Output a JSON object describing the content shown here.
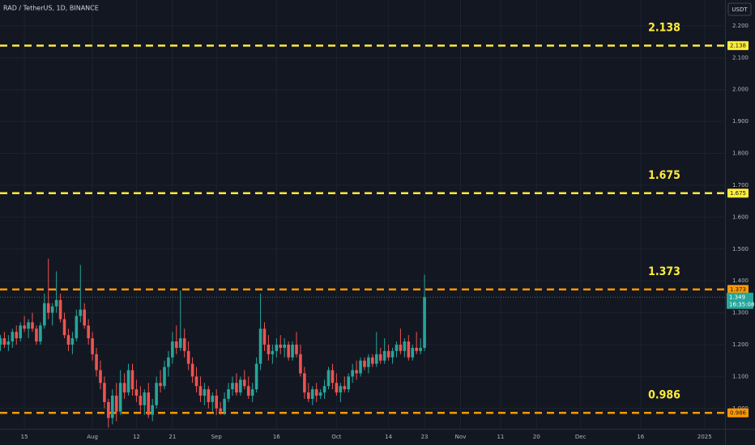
{
  "chart_data": {
    "type": "candlestick",
    "title": "RAD / TetherUS, 1D, BINANCE",
    "currency": "USDT",
    "up_color": "#26a69a",
    "down_color": "#ef5350",
    "grid": true,
    "ylim": [
      0.936,
      2.281
    ],
    "yticks": [
      {
        "value": 1.0,
        "label": "1.000"
      },
      {
        "value": 1.1,
        "label": "1.100"
      },
      {
        "value": 1.2,
        "label": "1.200"
      },
      {
        "value": 1.3,
        "label": "1.300"
      },
      {
        "value": 1.4,
        "label": "1.400"
      },
      {
        "value": 1.5,
        "label": "1.500"
      },
      {
        "value": 1.6,
        "label": "1.600"
      },
      {
        "value": 1.7,
        "label": "1.700"
      },
      {
        "value": 1.8,
        "label": "1.800"
      },
      {
        "value": 1.9,
        "label": "1.900"
      },
      {
        "value": 2.0,
        "label": "2.000"
      },
      {
        "value": 2.1,
        "label": "2.100"
      },
      {
        "value": 2.2,
        "label": "2.200"
      }
    ],
    "xlim": [
      7.9,
      189.1
    ],
    "xticks": [
      {
        "value": 14,
        "label": "15"
      },
      {
        "value": 31,
        "label": "Aug"
      },
      {
        "value": 42,
        "label": "12"
      },
      {
        "value": 51,
        "label": "21"
      },
      {
        "value": 62,
        "label": "Sep"
      },
      {
        "value": 77,
        "label": "16"
      },
      {
        "value": 92,
        "label": "Oct"
      },
      {
        "value": 105,
        "label": "14"
      },
      {
        "value": 114,
        "label": "23"
      },
      {
        "value": 123,
        "label": "Nov"
      },
      {
        "value": 133,
        "label": "11"
      },
      {
        "value": 142,
        "label": "20"
      },
      {
        "value": 153,
        "label": "Dec"
      },
      {
        "value": 168,
        "label": "16"
      },
      {
        "value": 184,
        "label": "2025"
      }
    ],
    "levels": [
      {
        "value": 2.138,
        "color": "#ffeb3b"
      },
      {
        "value": 1.675,
        "color": "#ffeb3b"
      },
      {
        "value": 1.373,
        "color": "#ff9800"
      },
      {
        "value": 0.986,
        "color": "#ff9800"
      }
    ],
    "level_label_color": "#ffeb3b",
    "last_price": 1.349,
    "countdown": "16:35:08",
    "x": [
      8,
      9,
      10,
      11,
      12,
      13,
      14,
      15,
      16,
      17,
      18,
      19,
      20,
      21,
      22,
      23,
      24,
      25,
      26,
      27,
      28,
      29,
      30,
      31,
      32,
      33,
      34,
      35,
      36,
      37,
      38,
      39,
      40,
      41,
      42,
      43,
      44,
      45,
      46,
      47,
      48,
      49,
      50,
      51,
      52,
      53,
      54,
      55,
      56,
      57,
      58,
      59,
      60,
      61,
      62,
      63,
      64,
      65,
      66,
      67,
      68,
      69,
      70,
      71,
      72,
      73,
      74,
      75,
      76,
      77,
      78,
      79,
      80,
      81,
      82,
      83,
      84,
      85,
      86,
      87,
      88,
      89,
      90,
      91,
      92,
      93,
      94,
      95,
      96,
      97,
      98,
      99,
      100,
      101,
      102,
      103,
      104,
      105,
      106,
      107,
      108,
      109,
      110,
      111,
      112,
      113,
      114
    ],
    "ohlc": [
      [
        1.2,
        1.23,
        1.18,
        1.22
      ],
      [
        1.22,
        1.24,
        1.19,
        1.2
      ],
      [
        1.2,
        1.23,
        1.18,
        1.21
      ],
      [
        1.21,
        1.25,
        1.19,
        1.24
      ],
      [
        1.24,
        1.26,
        1.2,
        1.22
      ],
      [
        1.22,
        1.27,
        1.21,
        1.26
      ],
      [
        1.26,
        1.29,
        1.24,
        1.25
      ],
      [
        1.25,
        1.28,
        1.22,
        1.27
      ],
      [
        1.27,
        1.3,
        1.24,
        1.25
      ],
      [
        1.25,
        1.26,
        1.2,
        1.21
      ],
      [
        1.21,
        1.27,
        1.2,
        1.26
      ],
      [
        1.26,
        1.36,
        1.25,
        1.33
      ],
      [
        1.33,
        1.47,
        1.28,
        1.3
      ],
      [
        1.3,
        1.33,
        1.26,
        1.32
      ],
      [
        1.32,
        1.43,
        1.3,
        1.34
      ],
      [
        1.34,
        1.36,
        1.27,
        1.28
      ],
      [
        1.28,
        1.3,
        1.22,
        1.23
      ],
      [
        1.23,
        1.25,
        1.18,
        1.2
      ],
      [
        1.2,
        1.24,
        1.17,
        1.22
      ],
      [
        1.22,
        1.31,
        1.21,
        1.29
      ],
      [
        1.29,
        1.45,
        1.27,
        1.31
      ],
      [
        1.31,
        1.33,
        1.25,
        1.26
      ],
      [
        1.26,
        1.28,
        1.2,
        1.22
      ],
      [
        1.22,
        1.24,
        1.15,
        1.17
      ],
      [
        1.17,
        1.19,
        1.1,
        1.12
      ],
      [
        1.12,
        1.15,
        1.06,
        1.08
      ],
      [
        1.08,
        1.1,
        1.0,
        1.02
      ],
      [
        1.02,
        1.03,
        0.94,
        0.97
      ],
      [
        0.97,
        1.06,
        0.95,
        1.04
      ],
      [
        1.04,
        1.08,
        0.96,
        0.99
      ],
      [
        0.99,
        1.12,
        0.98,
        1.08
      ],
      [
        1.08,
        1.11,
        1.03,
        1.05
      ],
      [
        1.05,
        1.14,
        1.04,
        1.12
      ],
      [
        1.12,
        1.14,
        1.04,
        1.06
      ],
      [
        1.06,
        1.09,
        1.02,
        1.04
      ],
      [
        1.04,
        1.07,
        0.99,
        1.01
      ],
      [
        1.01,
        1.06,
        0.98,
        1.05
      ],
      [
        1.05,
        1.08,
        0.97,
        0.98
      ],
      [
        0.98,
        1.03,
        0.96,
        1.01
      ],
      [
        1.01,
        1.1,
        1.0,
        1.08
      ],
      [
        1.08,
        1.12,
        1.05,
        1.07
      ],
      [
        1.07,
        1.15,
        1.06,
        1.13
      ],
      [
        1.13,
        1.18,
        1.1,
        1.16
      ],
      [
        1.16,
        1.24,
        1.14,
        1.21
      ],
      [
        1.21,
        1.26,
        1.17,
        1.19
      ],
      [
        1.19,
        1.37,
        1.18,
        1.22
      ],
      [
        1.22,
        1.25,
        1.16,
        1.18
      ],
      [
        1.18,
        1.21,
        1.12,
        1.14
      ],
      [
        1.14,
        1.16,
        1.08,
        1.1
      ],
      [
        1.1,
        1.13,
        1.05,
        1.07
      ],
      [
        1.07,
        1.1,
        1.02,
        1.04
      ],
      [
        1.04,
        1.08,
        1.01,
        1.06
      ],
      [
        1.06,
        1.07,
        1.0,
        1.02
      ],
      [
        1.02,
        1.05,
        0.99,
        1.04
      ],
      [
        1.04,
        1.06,
        0.98,
        1.0
      ],
      [
        1.0,
        1.02,
        0.98,
        0.99
      ],
      [
        0.99,
        1.05,
        0.98,
        1.03
      ],
      [
        1.03,
        1.08,
        1.02,
        1.06
      ],
      [
        1.06,
        1.1,
        1.04,
        1.08
      ],
      [
        1.08,
        1.11,
        1.04,
        1.05
      ],
      [
        1.05,
        1.1,
        1.04,
        1.09
      ],
      [
        1.09,
        1.12,
        1.06,
        1.07
      ],
      [
        1.07,
        1.1,
        1.03,
        1.04
      ],
      [
        1.04,
        1.08,
        1.02,
        1.06
      ],
      [
        1.06,
        1.16,
        1.05,
        1.14
      ],
      [
        1.14,
        1.36,
        1.12,
        1.25
      ],
      [
        1.25,
        1.27,
        1.18,
        1.2
      ],
      [
        1.2,
        1.23,
        1.15,
        1.17
      ],
      [
        1.17,
        1.2,
        1.14,
        1.18
      ],
      [
        1.18,
        1.22,
        1.16,
        1.2
      ],
      [
        1.2,
        1.23,
        1.17,
        1.19
      ],
      [
        1.19,
        1.22,
        1.16,
        1.2
      ],
      [
        1.2,
        1.21,
        1.15,
        1.16
      ],
      [
        1.16,
        1.21,
        1.15,
        1.2
      ],
      [
        1.2,
        1.24,
        1.16,
        1.17
      ],
      [
        1.17,
        1.2,
        1.1,
        1.11
      ],
      [
        1.11,
        1.13,
        1.03,
        1.05
      ],
      [
        1.05,
        1.08,
        1.02,
        1.03
      ],
      [
        1.03,
        1.07,
        1.01,
        1.06
      ],
      [
        1.06,
        1.08,
        1.02,
        1.04
      ],
      [
        1.04,
        1.06,
        1.03,
        1.05
      ],
      [
        1.05,
        1.09,
        1.03,
        1.07
      ],
      [
        1.07,
        1.13,
        1.06,
        1.12
      ],
      [
        1.12,
        1.14,
        1.06,
        1.08
      ],
      [
        1.08,
        1.11,
        1.04,
        1.05
      ],
      [
        1.05,
        1.08,
        1.02,
        1.07
      ],
      [
        1.07,
        1.1,
        1.05,
        1.06
      ],
      [
        1.06,
        1.11,
        1.05,
        1.1
      ],
      [
        1.1,
        1.14,
        1.08,
        1.12
      ],
      [
        1.12,
        1.15,
        1.09,
        1.11
      ],
      [
        1.11,
        1.16,
        1.1,
        1.15
      ],
      [
        1.15,
        1.16,
        1.12,
        1.13
      ],
      [
        1.13,
        1.17,
        1.11,
        1.16
      ],
      [
        1.16,
        1.17,
        1.13,
        1.14
      ],
      [
        1.14,
        1.24,
        1.13,
        1.17
      ],
      [
        1.17,
        1.19,
        1.14,
        1.15
      ],
      [
        1.15,
        1.22,
        1.14,
        1.18
      ],
      [
        1.18,
        1.2,
        1.15,
        1.16
      ],
      [
        1.16,
        1.19,
        1.14,
        1.18
      ],
      [
        1.18,
        1.21,
        1.16,
        1.2
      ],
      [
        1.2,
        1.25,
        1.17,
        1.18
      ],
      [
        1.18,
        1.22,
        1.16,
        1.21
      ],
      [
        1.21,
        1.23,
        1.15,
        1.16
      ],
      [
        1.16,
        1.2,
        1.15,
        1.19
      ],
      [
        1.19,
        1.24,
        1.17,
        1.18
      ],
      [
        1.18,
        1.22,
        1.17,
        1.19
      ],
      [
        1.19,
        1.42,
        1.18,
        1.349
      ]
    ]
  }
}
